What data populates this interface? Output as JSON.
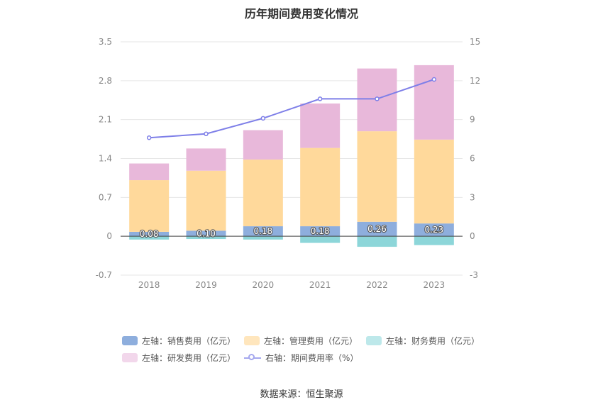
{
  "title": "历年期间费用变化情况",
  "source": "数据来源：恒生聚源",
  "chart_data": {
    "type": "bar",
    "stacked": true,
    "categories": [
      "2018",
      "2019",
      "2020",
      "2021",
      "2022",
      "2023"
    ],
    "left_axis": {
      "min": -0.7,
      "max": 3.5,
      "ticks": [
        "-0.7",
        "0",
        "0.7",
        "1.4",
        "2.1",
        "2.8",
        "3.5"
      ]
    },
    "right_axis": {
      "min": -3,
      "max": 15,
      "ticks": [
        "-3",
        "0",
        "3",
        "6",
        "9",
        "12",
        "15"
      ]
    },
    "series": [
      {
        "name": "左轴：销售费用（亿元）",
        "axis": "left",
        "color": "#8eaedd",
        "values": [
          0.08,
          0.1,
          0.18,
          0.18,
          0.26,
          0.23
        ],
        "labels": [
          "0.08",
          "0.10",
          "0.18",
          "0.18",
          "0.26",
          "0.23"
        ]
      },
      {
        "name": "左轴：管理费用（亿元）",
        "axis": "left",
        "color": "#ffd99b",
        "values": [
          0.93,
          1.08,
          1.2,
          1.41,
          1.63,
          1.51
        ]
      },
      {
        "name": "左轴：财务费用（亿元）",
        "axis": "left",
        "color": "#8dd6d9",
        "values": [
          -0.06,
          -0.05,
          -0.06,
          -0.12,
          -0.19,
          -0.16
        ]
      },
      {
        "name": "左轴：研发费用（亿元）",
        "axis": "left",
        "color": "#e8b8da",
        "values": [
          0.3,
          0.4,
          0.53,
          0.8,
          1.13,
          1.34
        ]
      },
      {
        "name": "右轴：期间费用率（%）",
        "axis": "right",
        "type": "line",
        "color": "#7e7fe8",
        "values": [
          7.6,
          7.9,
          9.1,
          10.6,
          10.6,
          12.1
        ]
      }
    ]
  },
  "legend": [
    {
      "label": "左轴：销售费用（亿元）",
      "color": "#8eaedd",
      "kind": "box"
    },
    {
      "label": "左轴：管理费用（亿元）",
      "color": "#ffe6bd",
      "kind": "box"
    },
    {
      "label": "左轴：财务费用（亿元）",
      "color": "#bde8ea",
      "kind": "box"
    },
    {
      "label": "左轴：研发费用（亿元）",
      "color": "#f2d7eb",
      "kind": "box"
    },
    {
      "label": "右轴：期间费用率（%）",
      "color": "#a5a8ee",
      "kind": "line"
    }
  ]
}
